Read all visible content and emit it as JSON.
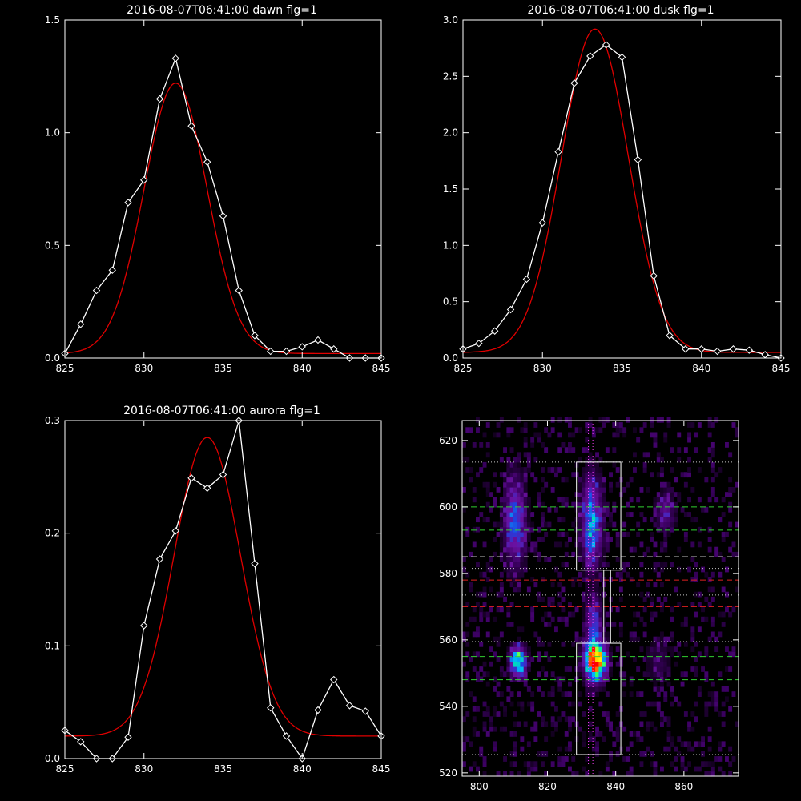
{
  "chart_data": [
    {
      "type": "line",
      "title": "2016-08-07T06:41:00 dawn flg=1",
      "xlim": [
        825,
        845
      ],
      "ylim": [
        0,
        1.5
      ],
      "xticks": [
        "825",
        "830",
        "835",
        "840",
        "845"
      ],
      "xtick_values": [
        825,
        830,
        835,
        840,
        845
      ],
      "yticks": [
        "0.0",
        "0.5",
        "1.0",
        "1.5"
      ],
      "ytick_values": [
        0,
        0.5,
        1.0,
        1.5
      ],
      "series": [
        {
          "kind": "data",
          "color": "#ffffff",
          "marker": "diamond",
          "x": [
            825,
            826,
            827,
            828,
            829,
            830,
            831,
            832,
            833,
            834,
            835,
            836,
            837,
            838,
            839,
            840,
            841,
            842,
            843,
            844,
            845
          ],
          "y": [
            0.02,
            0.15,
            0.3,
            0.39,
            0.69,
            0.79,
            1.15,
            1.33,
            1.03,
            0.87,
            0.63,
            0.3,
            0.1,
            0.03,
            0.03,
            0.05,
            0.08,
            0.04,
            0.0,
            -0.01,
            0.0
          ]
        },
        {
          "kind": "fit",
          "color": "#e00000",
          "gaussian": {
            "amplitude": 1.2,
            "center": 832.0,
            "sigma": 2.0,
            "baseline": 0.02
          }
        }
      ]
    },
    {
      "type": "line",
      "title": "2016-08-07T06:41:00 dusk flg=1",
      "xlim": [
        825,
        845
      ],
      "ylim": [
        0,
        3.0
      ],
      "xticks": [
        "825",
        "830",
        "835",
        "840",
        "845"
      ],
      "xtick_values": [
        825,
        830,
        835,
        840,
        845
      ],
      "yticks": [
        "0.0",
        "0.5",
        "1.0",
        "1.5",
        "2.0",
        "2.5",
        "3.0"
      ],
      "ytick_values": [
        0,
        0.5,
        1.0,
        1.5,
        2.0,
        2.5,
        3.0
      ],
      "series": [
        {
          "kind": "data",
          "color": "#ffffff",
          "marker": "diamond",
          "x": [
            825,
            826,
            827,
            828,
            829,
            830,
            831,
            832,
            833,
            834,
            835,
            836,
            837,
            838,
            839,
            840,
            841,
            842,
            843,
            844,
            845
          ],
          "y": [
            0.08,
            0.13,
            0.24,
            0.43,
            0.7,
            1.2,
            1.83,
            2.44,
            2.68,
            2.78,
            2.67,
            1.76,
            0.73,
            0.2,
            0.08,
            0.08,
            0.06,
            0.08,
            0.07,
            0.03,
            0.0
          ]
        },
        {
          "kind": "fit",
          "color": "#e00000",
          "gaussian": {
            "amplitude": 2.87,
            "center": 833.3,
            "sigma": 2.1,
            "baseline": 0.05
          }
        }
      ]
    },
    {
      "type": "line",
      "title": "2016-08-07T06:41:00 aurora flg=1",
      "xlim": [
        825,
        845
      ],
      "ylim": [
        0,
        0.3
      ],
      "xticks": [
        "825",
        "830",
        "835",
        "840",
        "845"
      ],
      "xtick_values": [
        825,
        830,
        835,
        840,
        845
      ],
      "yticks": [
        "0.0",
        "0.1",
        "0.2",
        "0.3"
      ],
      "ytick_values": [
        0,
        0.1,
        0.2,
        0.3
      ],
      "series": [
        {
          "kind": "data",
          "color": "#ffffff",
          "marker": "diamond",
          "x": [
            825,
            826,
            827,
            828,
            829,
            830,
            831,
            832,
            833,
            834,
            835,
            836,
            837,
            838,
            839,
            840,
            841,
            842,
            843,
            844,
            845
          ],
          "y": [
            0.025,
            0.015,
            -0.002,
            -0.002,
            0.019,
            0.118,
            0.177,
            0.202,
            0.249,
            0.24,
            0.252,
            0.3,
            0.173,
            0.045,
            0.02,
            -0.001,
            0.043,
            0.07,
            0.047,
            0.042,
            0.02
          ]
        },
        {
          "kind": "fit",
          "color": "#e00000",
          "gaussian": {
            "amplitude": 0.265,
            "center": 834.0,
            "sigma": 2.1,
            "baseline": 0.02
          }
        }
      ]
    },
    {
      "type": "heatmap",
      "title": "",
      "xlim": [
        795,
        876
      ],
      "ylim": [
        519,
        626
      ],
      "xticks": [
        "800",
        "820",
        "840",
        "860"
      ],
      "xtick_values": [
        800,
        820,
        840,
        860
      ],
      "yticks": [
        "520",
        "540",
        "560",
        "580",
        "600",
        "620"
      ],
      "ytick_values": [
        520,
        540,
        560,
        580,
        600,
        620
      ],
      "colormap": [
        "#000000",
        "#3a0060",
        "#6a10a0",
        "#2040e0",
        "#00b0ff",
        "#00ff80",
        "#ffff00",
        "#ff8000",
        "#ff0000"
      ],
      "blobs": [
        {
          "x": 833.5,
          "y": 553,
          "sx": 2.0,
          "sy": 4.0,
          "amp": 1.0
        },
        {
          "x": 833,
          "y": 565,
          "sx": 1.6,
          "sy": 5.0,
          "amp": 0.3
        },
        {
          "x": 832.5,
          "y": 595,
          "sx": 2.0,
          "sy": 9.0,
          "amp": 0.45
        },
        {
          "x": 811,
          "y": 553,
          "sx": 1.6,
          "sy": 3.0,
          "amp": 0.6
        },
        {
          "x": 810,
          "y": 595,
          "sx": 2.2,
          "sy": 9.0,
          "amp": 0.35
        },
        {
          "x": 854,
          "y": 598,
          "sx": 2.0,
          "sy": 4.0,
          "amp": 0.2
        },
        {
          "x": 852,
          "y": 553,
          "sx": 2.5,
          "sy": 5.0,
          "amp": 0.1
        }
      ],
      "boxes": [
        {
          "x0": 828.5,
          "x1": 841.5,
          "y0": 581,
          "y1": 613.5
        },
        {
          "x0": 836.5,
          "x1": 838.5,
          "y0": 559,
          "y1": 581
        },
        {
          "x0": 828.5,
          "x1": 841.5,
          "y0": 525.5,
          "y1": 559
        }
      ],
      "hlines": [
        {
          "y": 613.5,
          "style": "dotted",
          "color": "#c8c8c8"
        },
        {
          "y": 581.5,
          "style": "dotted",
          "color": "#c8c8c8"
        },
        {
          "y": 573.5,
          "style": "dotted",
          "color": "#c8c8c8"
        },
        {
          "y": 559.5,
          "style": "dotted",
          "color": "#c8c8c8"
        },
        {
          "y": 525.5,
          "style": "dotted",
          "color": "#c8c8c8"
        },
        {
          "y": 600,
          "style": "dashed",
          "color": "#30d030"
        },
        {
          "y": 593,
          "style": "dashed",
          "color": "#30d030"
        },
        {
          "y": 585,
          "style": "dashed",
          "color": "#ffffff"
        },
        {
          "y": 578,
          "style": "dashed",
          "color": "#e02020"
        },
        {
          "y": 570,
          "style": "dashed",
          "color": "#e02020"
        },
        {
          "y": 555,
          "style": "dashed",
          "color": "#30d030"
        },
        {
          "y": 548,
          "style": "dashed",
          "color": "#30d030"
        }
      ],
      "vlines": [
        {
          "x": 832,
          "style": "dotted",
          "color": "#ff40ff"
        },
        {
          "x": 833.3,
          "style": "dotted",
          "color": "#ff40ff"
        }
      ]
    }
  ]
}
